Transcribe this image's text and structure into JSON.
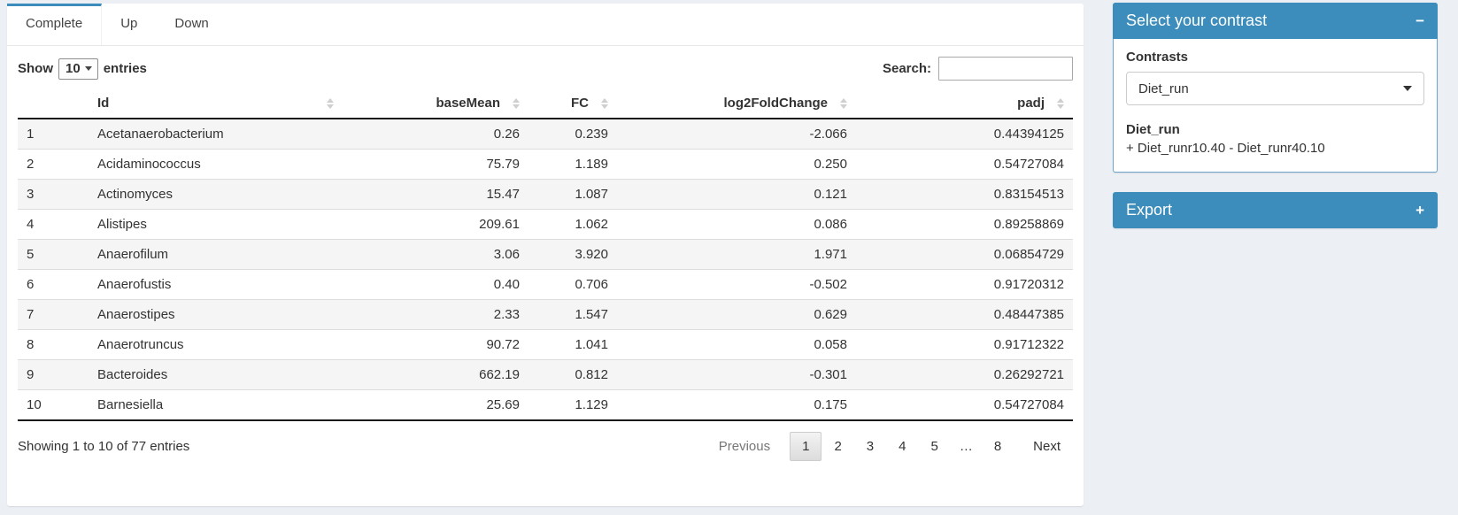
{
  "tabs": [
    {
      "label": "Complete",
      "active": true
    },
    {
      "label": "Up",
      "active": false
    },
    {
      "label": "Down",
      "active": false
    }
  ],
  "length_control": {
    "prefix": "Show",
    "value": "10",
    "suffix": "entries"
  },
  "search": {
    "label": "Search:",
    "value": "",
    "placeholder": ""
  },
  "table": {
    "columns": [
      {
        "label": "",
        "sortable": false,
        "align": "left"
      },
      {
        "label": "Id",
        "sortable": true,
        "align": "left"
      },
      {
        "label": "baseMean",
        "sortable": true,
        "align": "right"
      },
      {
        "label": "FC",
        "sortable": true,
        "align": "right"
      },
      {
        "label": "log2FoldChange",
        "sortable": true,
        "align": "right"
      },
      {
        "label": "padj",
        "sortable": true,
        "align": "right"
      }
    ],
    "rows": [
      [
        "1",
        "Acetanaerobacterium",
        "0.26",
        "0.239",
        "-2.066",
        "0.44394125"
      ],
      [
        "2",
        "Acidaminococcus",
        "75.79",
        "1.189",
        "0.250",
        "0.54727084"
      ],
      [
        "3",
        "Actinomyces",
        "15.47",
        "1.087",
        "0.121",
        "0.83154513"
      ],
      [
        "4",
        "Alistipes",
        "209.61",
        "1.062",
        "0.086",
        "0.89258869"
      ],
      [
        "5",
        "Anaerofilum",
        "3.06",
        "3.920",
        "1.971",
        "0.06854729"
      ],
      [
        "6",
        "Anaerofustis",
        "0.40",
        "0.706",
        "-0.502",
        "0.91720312"
      ],
      [
        "7",
        "Anaerostipes",
        "2.33",
        "1.547",
        "0.629",
        "0.48447385"
      ],
      [
        "8",
        "Anaerotruncus",
        "90.72",
        "1.041",
        "0.058",
        "0.91712322"
      ],
      [
        "9",
        "Bacteroides",
        "662.19",
        "0.812",
        "-0.301",
        "0.26292721"
      ],
      [
        "10",
        "Barnesiella",
        "25.69",
        "1.129",
        "0.175",
        "0.54727084"
      ]
    ]
  },
  "footer": {
    "info": "Showing 1 to 10 of 77 entries",
    "pagination": {
      "previous": "Previous",
      "pages": [
        "1",
        "2",
        "3",
        "4",
        "5",
        "…",
        "8"
      ],
      "current": "1",
      "next": "Next"
    }
  },
  "contrast_panel": {
    "title": "Select your contrast",
    "collapse_icon": "−",
    "contrasts_label": "Contrasts",
    "selected_contrast": "Diet_run",
    "contrast_name": "Diet_run",
    "contrast_formula": "+ Diet_runr10.40 - Diet_runr40.10"
  },
  "export_panel": {
    "title": "Export",
    "collapse_icon": "+"
  },
  "colors": {
    "accent": "#3c8dbc",
    "page_bg": "#ecf0f5",
    "header_text": "#ffffff",
    "stripe": "#f5f5f5"
  }
}
